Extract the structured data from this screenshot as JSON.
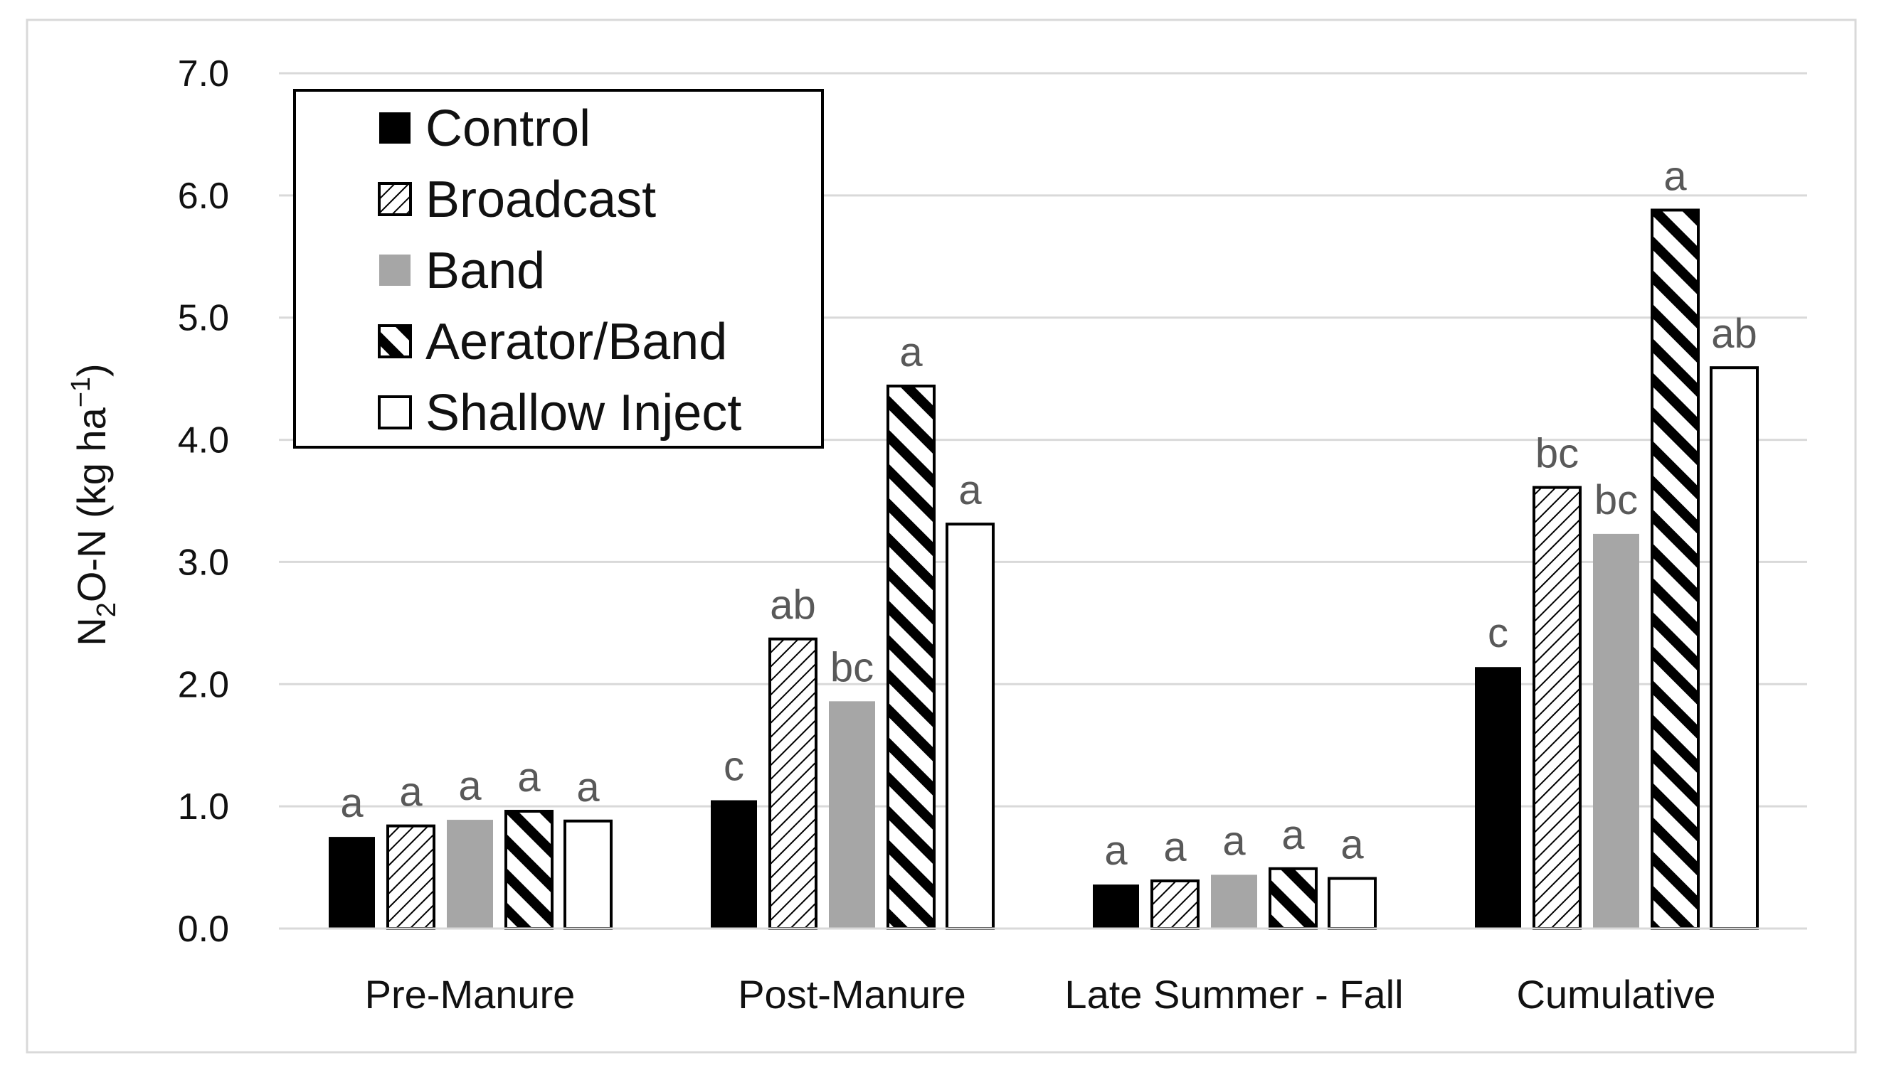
{
  "chart_data": {
    "type": "bar",
    "title": "",
    "xlabel": "",
    "ylabel": {
      "prefix": "N",
      "subscript": "2",
      "middle": "O-N (kg ha",
      "superscript": "−1",
      "suffix": ")"
    },
    "ylim": [
      0,
      7
    ],
    "yticks": [
      "0.0",
      "1.0",
      "2.0",
      "3.0",
      "4.0",
      "5.0",
      "6.0",
      "7.0"
    ],
    "grid": true,
    "legend_position": "top-left",
    "categories": [
      "Pre-Manure",
      "Post-Manure",
      "Late Summer - Fall",
      "Cumulative"
    ],
    "series": [
      {
        "name": "Control",
        "pattern": "solid-black",
        "values": [
          0.75,
          1.05,
          0.36,
          2.14
        ],
        "letters": [
          "a",
          "c",
          "a",
          "c"
        ]
      },
      {
        "name": "Broadcast",
        "pattern": "light-diagonal-hatch",
        "values": [
          0.84,
          2.37,
          0.39,
          3.61
        ],
        "letters": [
          "a",
          "ab",
          "a",
          "bc"
        ]
      },
      {
        "name": "Band",
        "pattern": "solid-gray",
        "values": [
          0.89,
          1.86,
          0.44,
          3.23
        ],
        "letters": [
          "a",
          "bc",
          "a",
          "bc"
        ]
      },
      {
        "name": "Aerator/Band",
        "pattern": "bold-diagonal-stripes",
        "values": [
          0.96,
          4.44,
          0.49,
          5.88
        ],
        "letters": [
          "a",
          "a",
          "a",
          "a"
        ]
      },
      {
        "name": "Shallow Inject",
        "pattern": "white",
        "values": [
          0.88,
          3.31,
          0.41,
          4.59
        ],
        "letters": [
          "a",
          "a",
          "a",
          "ab"
        ]
      }
    ],
    "colors": {
      "control": "#000000",
      "band": "#a6a6a6",
      "white": "#ffffff",
      "grid": "#d9d9d9",
      "letters": "#595959",
      "frame": "#d9d9d9"
    }
  }
}
